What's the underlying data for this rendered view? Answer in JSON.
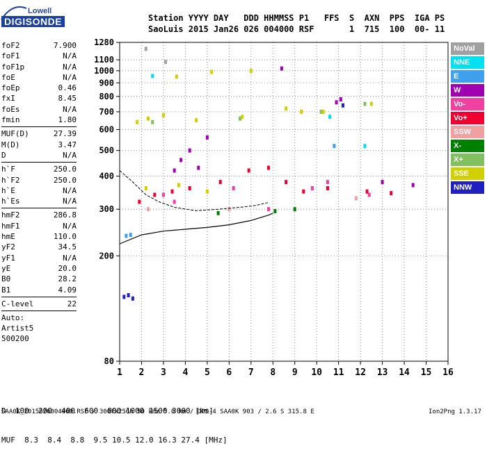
{
  "logo": {
    "company": "Lowell",
    "product": "DIGISONDE"
  },
  "header": {
    "line1": "Station YYYY DAY   DDD HHMMSS P1   FFS  S  AXN  PPS  IGA PS",
    "line2": "SaoLuis 2015 Jan26 026 004000 RSF       1  715  100  00- 11"
  },
  "params_group1": [
    {
      "label": "foF2",
      "value": "7.900"
    },
    {
      "label": "foF1",
      "value": "N/A"
    },
    {
      "label": "foF1p",
      "value": "N/A"
    },
    {
      "label": "foE",
      "value": "N/A"
    },
    {
      "label": "foEp",
      "value": "0.46"
    },
    {
      "label": "fxI",
      "value": "8.45"
    },
    {
      "label": "foEs",
      "value": "N/A"
    },
    {
      "label": "fmin",
      "value": "1.80"
    }
  ],
  "params_group2": [
    {
      "label": "MUF(D)",
      "value": "27.39"
    },
    {
      "label": "M(D)",
      "value": "3.47"
    },
    {
      "label": "D",
      "value": "N/A"
    }
  ],
  "params_group3": [
    {
      "label": "h`F",
      "value": "250.0"
    },
    {
      "label": "h`F2",
      "value": "250.0"
    },
    {
      "label": "h`E",
      "value": "N/A"
    },
    {
      "label": "h`Es",
      "value": "N/A"
    }
  ],
  "params_group4": [
    {
      "label": "hmF2",
      "value": "286.8"
    },
    {
      "label": "hmF1",
      "value": "N/A"
    },
    {
      "label": "hmE",
      "value": "110.0"
    },
    {
      "label": "yF2",
      "value": "34.5"
    },
    {
      "label": "yF1",
      "value": "N/A"
    },
    {
      "label": "yE",
      "value": "20.0"
    },
    {
      "label": "B0",
      "value": "28.2"
    },
    {
      "label": "B1",
      "value": "4.09"
    }
  ],
  "params_group5": [
    {
      "label": "C-level",
      "value": "22"
    }
  ],
  "autoscale": {
    "line1": "Auto:",
    "line2": "Artist5",
    "line3": "500200"
  },
  "legend": [
    {
      "label": "NoVal",
      "color": "#a0a0a0"
    },
    {
      "label": "NNE",
      "color": "#00e0f0"
    },
    {
      "label": "E",
      "color": "#40a0f0"
    },
    {
      "label": "W",
      "color": "#a000b0"
    },
    {
      "label": "Vo-",
      "color": "#f040a0"
    },
    {
      "label": "Vo+",
      "color": "#f00030"
    },
    {
      "label": "SSW",
      "color": "#f0a0a0"
    },
    {
      "label": "X-",
      "color": "#008000"
    },
    {
      "label": "X+",
      "color": "#80c060"
    },
    {
      "label": "SSE",
      "color": "#d0d000"
    },
    {
      "label": "NNW",
      "color": "#2020c0"
    }
  ],
  "muf_table": {
    "d_label": "D",
    "d_values": [
      "100",
      "200",
      "400",
      "600",
      "800",
      "1000",
      "1500",
      "3000"
    ],
    "d_unit": "[km]",
    "muf_label": "MUF",
    "muf_values": [
      "8.3",
      "8.4",
      "8.8",
      "9.5",
      "10.5",
      "12.0",
      "16.3",
      "27.4"
    ],
    "muf_unit": "[MHz]"
  },
  "footer": {
    "left": "SAA0K_2015026004000.RSF / 300fx256h 50 kHz 5.0 km / DPS-4 SAA0K 903 / 2.6 S 315.8 E",
    "right": "Ion2Png 1.3.17"
  },
  "chart_data": {
    "type": "scatter",
    "title": "",
    "xlabel": "",
    "ylabel": "",
    "x_ticks": [
      1,
      2,
      3,
      4,
      5,
      6,
      7,
      8,
      9,
      10,
      11,
      12,
      13,
      14,
      15,
      16
    ],
    "y_ticks": [
      80,
      200,
      300,
      400,
      500,
      600,
      700,
      800,
      900,
      1000,
      1100,
      1280
    ],
    "xlim": [
      1,
      16
    ],
    "ylim": [
      80,
      1280
    ],
    "y_scale": "log",
    "grid": "dotted",
    "series": [
      {
        "name": "NoVal",
        "color": "#a0a0a0",
        "points": [
          [
            2.2,
            1210
          ],
          [
            3.1,
            1080
          ]
        ]
      },
      {
        "name": "NNE",
        "color": "#00e0f0",
        "points": [
          [
            2.5,
            955
          ],
          [
            10.6,
            670
          ],
          [
            12.2,
            520
          ]
        ]
      },
      {
        "name": "E",
        "color": "#40a0f0",
        "points": [
          [
            1.3,
            238
          ],
          [
            1.5,
            240
          ],
          [
            10.8,
            520
          ]
        ]
      },
      {
        "name": "W",
        "color": "#a000b0",
        "points": [
          [
            3.5,
            420
          ],
          [
            3.8,
            460
          ],
          [
            4.2,
            500
          ],
          [
            4.6,
            430
          ],
          [
            5.0,
            560
          ],
          [
            10.9,
            760
          ],
          [
            11.1,
            780
          ],
          [
            8.4,
            1020
          ],
          [
            13.0,
            380
          ],
          [
            14.4,
            370
          ]
        ]
      },
      {
        "name": "Vo-",
        "color": "#f040a0",
        "points": [
          [
            3.0,
            340
          ],
          [
            3.5,
            320
          ],
          [
            6.2,
            360
          ],
          [
            7.8,
            300
          ],
          [
            9.8,
            360
          ],
          [
            10.5,
            380
          ],
          [
            12.4,
            340
          ]
        ]
      },
      {
        "name": "Vo+",
        "color": "#f00030",
        "points": [
          [
            1.9,
            320
          ],
          [
            2.6,
            340
          ],
          [
            3.4,
            350
          ],
          [
            4.2,
            360
          ],
          [
            5.6,
            380
          ],
          [
            6.9,
            420
          ],
          [
            7.8,
            430
          ],
          [
            8.6,
            380
          ],
          [
            9.4,
            350
          ],
          [
            10.5,
            360
          ],
          [
            12.3,
            350
          ],
          [
            13.4,
            345
          ]
        ]
      },
      {
        "name": "SSW",
        "color": "#f0a0a0",
        "points": [
          [
            2.3,
            300
          ],
          [
            6.0,
            300
          ],
          [
            11.8,
            330
          ]
        ]
      },
      {
        "name": "X-",
        "color": "#008000",
        "points": [
          [
            5.5,
            290
          ],
          [
            8.1,
            295
          ],
          [
            9.0,
            300
          ]
        ]
      },
      {
        "name": "X+",
        "color": "#80c060",
        "points": [
          [
            2.5,
            640
          ],
          [
            6.5,
            660
          ],
          [
            10.2,
            700
          ],
          [
            12.2,
            750
          ]
        ]
      },
      {
        "name": "SSE",
        "color": "#d0d000",
        "points": [
          [
            1.8,
            640
          ],
          [
            2.3,
            660
          ],
          [
            3.0,
            680
          ],
          [
            4.5,
            650
          ],
          [
            6.6,
            670
          ],
          [
            8.6,
            720
          ],
          [
            9.3,
            700
          ],
          [
            3.6,
            950
          ],
          [
            5.2,
            990
          ],
          [
            7.0,
            1000
          ],
          [
            10.3,
            700
          ],
          [
            12.5,
            750
          ],
          [
            2.2,
            360
          ],
          [
            3.7,
            370
          ],
          [
            5.0,
            350
          ]
        ]
      },
      {
        "name": "NNW",
        "color": "#2020c0",
        "points": [
          [
            1.2,
            140
          ],
          [
            1.4,
            142
          ],
          [
            1.6,
            138
          ],
          [
            11.2,
            740
          ]
        ]
      }
    ],
    "traces": [
      {
        "name": "profile",
        "points": [
          [
            1,
            222
          ],
          [
            2,
            240
          ],
          [
            3,
            248
          ],
          [
            4,
            252
          ],
          [
            5,
            256
          ],
          [
            6,
            262
          ],
          [
            7,
            272
          ],
          [
            7.8,
            285
          ],
          [
            8.0,
            290
          ]
        ]
      },
      {
        "name": "ordinary",
        "points": [
          [
            1,
            420
          ],
          [
            1.6,
            380
          ],
          [
            2.2,
            340
          ],
          [
            2.8,
            320
          ],
          [
            3.5,
            305
          ],
          [
            4.5,
            296
          ],
          [
            5.5,
            300
          ],
          [
            6.5,
            305
          ],
          [
            7.2,
            310
          ],
          [
            7.8,
            318
          ]
        ]
      }
    ]
  }
}
